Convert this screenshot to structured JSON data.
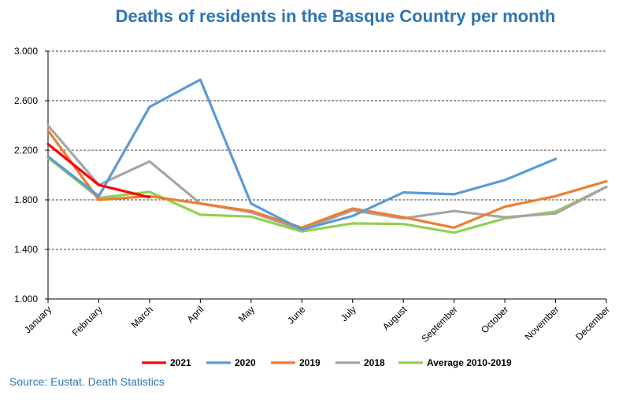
{
  "chart_data": {
    "type": "line",
    "title": "Deaths of residents in the Basque Country per month",
    "categories": [
      "January",
      "February",
      "March",
      "April",
      "May",
      "June",
      "July",
      "August",
      "September",
      "October",
      "November",
      "December"
    ],
    "y_ticks": [
      "1.000",
      "1.400",
      "1.800",
      "2.200",
      "2.600",
      "3.000"
    ],
    "y_tick_values": [
      1000,
      1400,
      1800,
      2200,
      2600,
      3000
    ],
    "ylim": [
      1000,
      3000
    ],
    "grid": "horizontal-dashed",
    "legend_position": "bottom",
    "series": [
      {
        "name": "2021",
        "color": "#ff0000",
        "values": [
          2250,
          1920,
          1820,
          null,
          null,
          null,
          null,
          null,
          null,
          null,
          null,
          null
        ]
      },
      {
        "name": "2020",
        "color": "#5b9bd5",
        "values": [
          2150,
          1830,
          2550,
          2770,
          1770,
          1560,
          1670,
          1860,
          1845,
          1960,
          2130,
          null
        ]
      },
      {
        "name": "2019",
        "color": "#ed7d31",
        "values": [
          2360,
          1800,
          1830,
          1770,
          1710,
          1575,
          1730,
          1660,
          1575,
          1745,
          1830,
          1950
        ]
      },
      {
        "name": "2018",
        "color": "#a5a5a5",
        "values": [
          2400,
          1920,
          2110,
          1770,
          1700,
          1560,
          1715,
          1650,
          1710,
          1660,
          1690,
          1905
        ]
      },
      {
        "name": "Average 2010-2019",
        "color": "#92d050",
        "values": [
          2140,
          1815,
          1865,
          1680,
          1665,
          1545,
          1610,
          1605,
          1535,
          1650,
          1705,
          1905
        ]
      }
    ],
    "source": "Source: Eustat. Death Statistics"
  },
  "colors": {
    "title": "#2e75b6",
    "source": "#2e75b6",
    "grid": "#000000"
  }
}
